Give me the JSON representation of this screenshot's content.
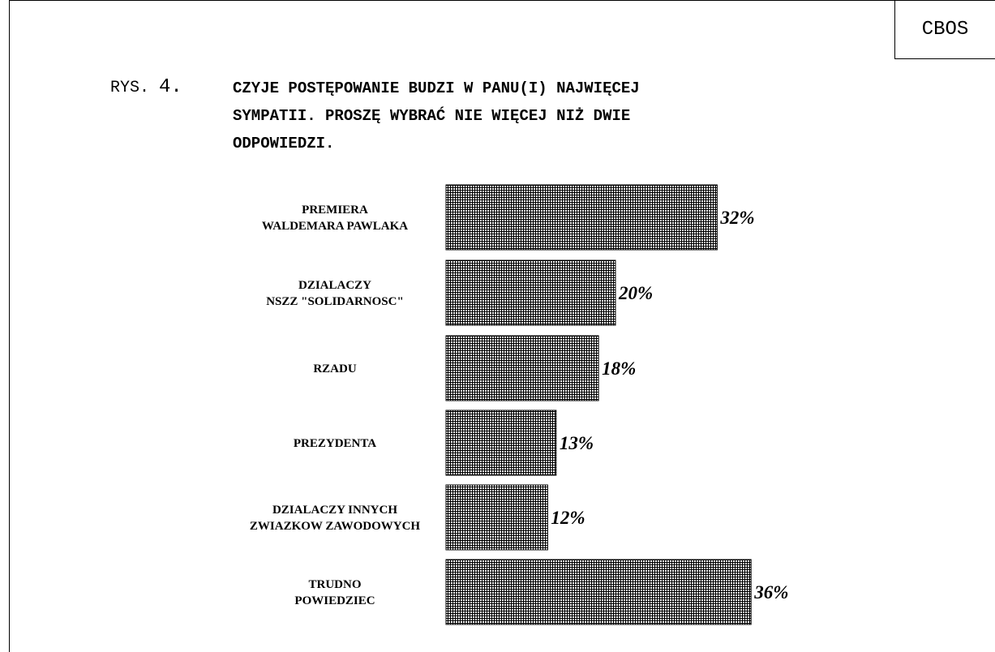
{
  "header": {
    "brand": "CBOS"
  },
  "caption": {
    "prefix": "RYS.",
    "number": "4.",
    "title_lines": [
      "CZYJE POSTĘPOWANIE BUDZI W PANU(I) NAJWIĘCEJ",
      "SYMPATII. PROSZĘ WYBRAĆ NIE WIĘCEJ NIŻ DWIE",
      "ODPOWIEDZI."
    ]
  },
  "chart_data": {
    "type": "bar",
    "orientation": "horizontal",
    "categories": [
      [
        "PREMIERA",
        "WALDEMARA PAWLAKA"
      ],
      [
        "DZIALACZY",
        "NSZZ \"SOLIDARNOSC\""
      ],
      [
        "RZADU"
      ],
      [
        "PREZYDENTA"
      ],
      [
        "DZIALACZY INNYCH",
        "ZWIAZKOW ZAWODOWYCH"
      ],
      [
        "TRUDNO",
        "POWIEDZIEC"
      ]
    ],
    "values": [
      32,
      20,
      18,
      13,
      12,
      36
    ],
    "value_labels": [
      "32%",
      "20%",
      "18%",
      "13%",
      "12%",
      "36%"
    ],
    "xlim": [
      0,
      40
    ],
    "grid": false,
    "bar_fill": "crosshatch",
    "bar_color": "#000000"
  }
}
